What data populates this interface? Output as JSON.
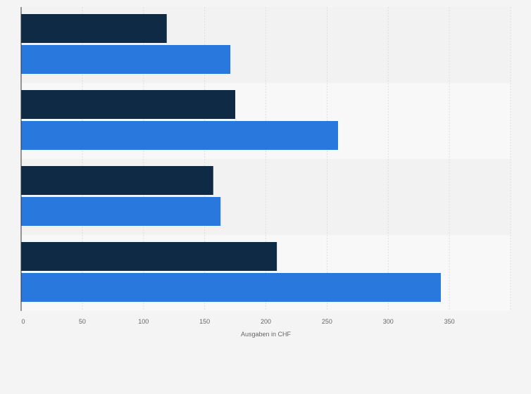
{
  "chart_data": {
    "type": "bar",
    "orientation": "horizontal",
    "categories": [
      "",
      "",
      "",
      ""
    ],
    "series": [
      {
        "color": "#0f2a44",
        "values": [
          119,
          175,
          157,
          209
        ]
      },
      {
        "color": "#2878de",
        "values": [
          171,
          259,
          163,
          343
        ]
      }
    ],
    "xlabel": "Ausgaben in CHF",
    "ylabel": "",
    "xlim": [
      0,
      400
    ],
    "xticks": [
      "0",
      "50",
      "100",
      "150",
      "200",
      "250",
      "300",
      "350"
    ],
    "grid": true,
    "legend": "none"
  },
  "colors": {
    "background": "#f4f4f4",
    "band_light": "#f8f8f8",
    "band_dark": "#f2f2f2",
    "grid": "#dddddd",
    "axis": "#333333"
  }
}
